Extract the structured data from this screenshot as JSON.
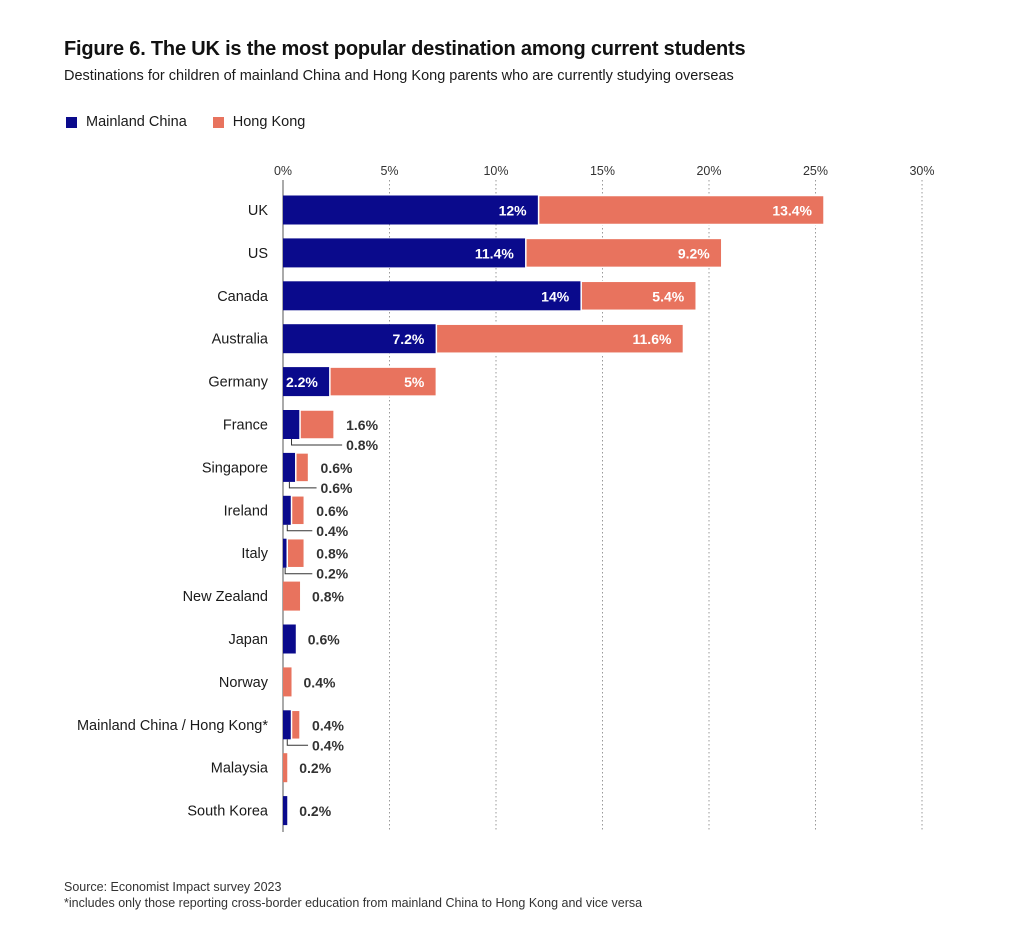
{
  "title": "Figure 6. The UK is the most popular destination among current students",
  "subtitle": "Destinations for children of mainland China and Hong Kong parents who are currently studying overseas",
  "legend": [
    {
      "label": "Mainland China",
      "color": "#0a0a8c"
    },
    {
      "label": "Hong Kong",
      "color": "#e8735e"
    }
  ],
  "source": "Source: Economist Impact survey 2023",
  "note": "*includes only those reporting cross-border education from mainland China to Hong Kong and vice versa",
  "chart_data": {
    "type": "bar",
    "orientation": "horizontal",
    "stacked": true,
    "xlim": [
      0,
      30
    ],
    "x_ticks": [
      "0%",
      "5%",
      "10%",
      "15%",
      "20%",
      "25%",
      "30%"
    ],
    "grid": "vertical dotted",
    "legend_position": "top-left",
    "categories": [
      "UK",
      "US",
      "Canada",
      "Australia",
      "Germany",
      "France",
      "Singapore",
      "Ireland",
      "Italy",
      "New Zealand",
      "Japan",
      "Norway",
      "Mainland China / Hong Kong*",
      "Malaysia",
      "South Korea"
    ],
    "series": [
      {
        "name": "Mainland China",
        "color": "#0a0a8c",
        "values": [
          12,
          11.4,
          14,
          7.2,
          2.2,
          0.8,
          0.6,
          0.4,
          0.2,
          null,
          0.6,
          null,
          0.4,
          null,
          0.2
        ],
        "labels": [
          "12%",
          "11.4%",
          "14%",
          "7.2%",
          "2.2%",
          "0.8%",
          "0.6%",
          "0.4%",
          "0.2%",
          "",
          "0.6%",
          "",
          "0.4%",
          "",
          "0.2%"
        ]
      },
      {
        "name": "Hong Kong",
        "color": "#e8735e",
        "values": [
          13.4,
          9.2,
          5.4,
          11.6,
          5,
          1.6,
          0.6,
          0.6,
          0.8,
          0.8,
          null,
          0.4,
          0.4,
          0.2,
          null
        ],
        "labels": [
          "13.4%",
          "9.2%",
          "5.4%",
          "11.6%",
          "5%",
          "1.6%",
          "0.6%",
          "0.6%",
          "0.8%",
          "0.8%",
          "",
          "0.4%",
          "0.4%",
          "0.2%",
          ""
        ]
      }
    ]
  }
}
